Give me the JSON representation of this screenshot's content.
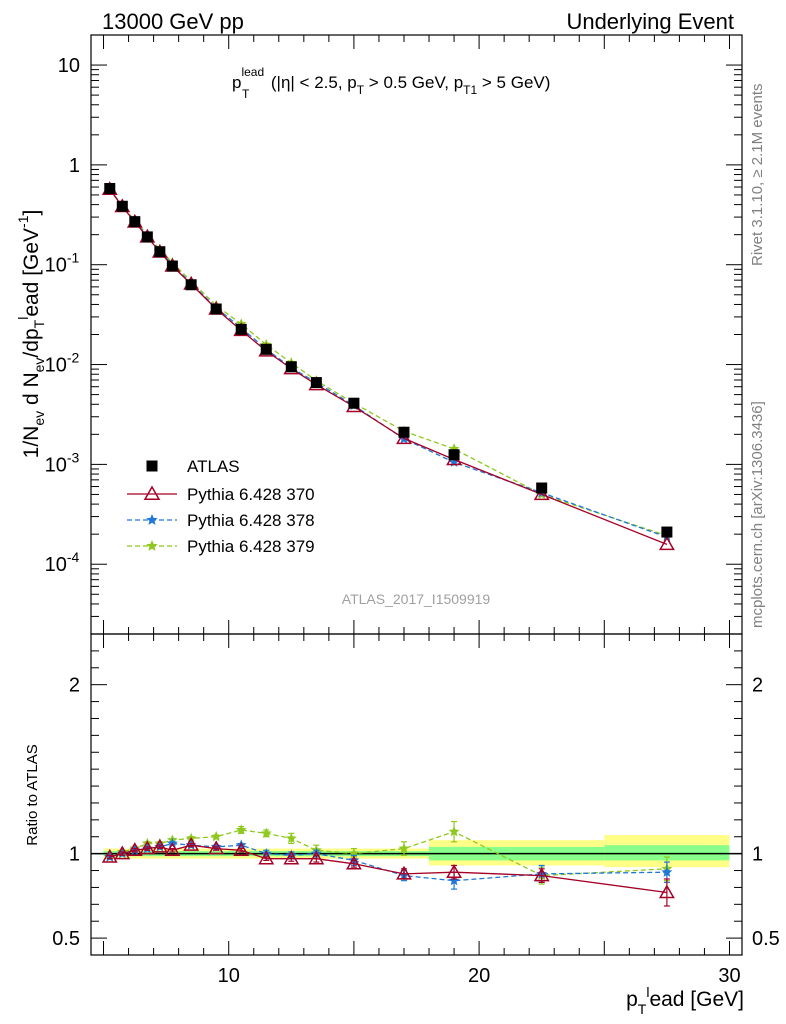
{
  "header": {
    "left": "13000 GeV pp",
    "right": "Underlying Event"
  },
  "side": {
    "rivet": "Rivet 3.1.10, ≥ 2.1M events",
    "mcplots": "mcplots.cern.ch [arXiv:1306.3436]"
  },
  "watermark": "ATLAS_2017_I1509919",
  "main_title": {
    "p": "p",
    "sup": "lead",
    "sub": "T",
    "rest1": " (|η| < 2.5, p",
    "sub2": "T",
    "rest2": " > 0.5 GeV, p",
    "sub3": "T1",
    "rest3": " > 5 GeV)"
  },
  "ylabel_main": "1/N_ev d N_ev/dp_T^lead [GeV^-1]",
  "ylabel_ratio": "Ratio to ATLAS",
  "xlabel": "p_T^lead [GeV]",
  "colors": {
    "atlas": "#000000",
    "p370": "#a50026",
    "p378": "#1f78d8",
    "p379": "#8fc81e",
    "band_yellow": "#ffff88",
    "band_green": "#88ff88"
  },
  "chart_data": [
    {
      "type": "scatter",
      "name": "main",
      "yscale": "log",
      "xlim": [
        4.5,
        30.5
      ],
      "ylim": [
        2e-05,
        20
      ],
      "xticks": [
        10,
        20,
        30
      ],
      "yticks": [
        {
          "v": 10,
          "label": "10"
        },
        {
          "v": 1,
          "label": "1"
        },
        {
          "v": 0.1,
          "label": "10^-1"
        },
        {
          "v": 0.01,
          "label": "10^-2"
        },
        {
          "v": 0.001,
          "label": "10^-3"
        },
        {
          "v": 0.0001,
          "label": "10^-4"
        }
      ],
      "legend_position": "lower-left",
      "x": [
        5.25,
        5.75,
        6.25,
        6.75,
        7.25,
        7.75,
        8.5,
        9.5,
        10.5,
        11.5,
        12.5,
        13.5,
        15,
        17,
        19,
        22.5,
        27.5
      ],
      "series": [
        {
          "name": "ATLAS",
          "key": "atlas",
          "marker": "square",
          "line": "none",
          "values": [
            0.58,
            0.385,
            0.27,
            0.19,
            0.135,
            0.097,
            0.063,
            0.036,
            0.0225,
            0.0142,
            0.0095,
            0.0066,
            0.0041,
            0.0021,
            0.00125,
            0.00058,
            0.00021
          ]
        },
        {
          "name": "Pythia 6.428 370",
          "key": "p370",
          "marker": "triangle-open",
          "line": "solid",
          "values": [
            0.57,
            0.383,
            0.268,
            0.19,
            0.134,
            0.097,
            0.064,
            0.036,
            0.022,
            0.0137,
            0.0091,
            0.0063,
            0.0038,
            0.00182,
            0.00112,
            0.0005,
            0.000158
          ]
        },
        {
          "name": "Pythia 6.428 378",
          "key": "p378",
          "marker": "star",
          "line": "dashed",
          "values": [
            0.57,
            0.385,
            0.271,
            0.194,
            0.137,
            0.1,
            0.065,
            0.037,
            0.0233,
            0.0142,
            0.0093,
            0.0066,
            0.0039,
            0.0018,
            0.00105,
            0.00052,
            0.000187
          ]
        },
        {
          "name": "Pythia 6.428 379",
          "key": "p379",
          "marker": "star",
          "line": "dashed",
          "values": [
            0.57,
            0.39,
            0.277,
            0.2,
            0.142,
            0.105,
            0.068,
            0.039,
            0.0255,
            0.0158,
            0.0104,
            0.0069,
            0.0041,
            0.00215,
            0.00143,
            0.0005,
            0.000193
          ]
        }
      ]
    },
    {
      "type": "scatter",
      "name": "ratio",
      "ylabel": "Ratio to ATLAS",
      "xlim": [
        4.5,
        30.5
      ],
      "ylim": [
        0.4,
        2.3
      ],
      "xticks": [
        10,
        20,
        30
      ],
      "yticks": [
        {
          "v": 0.5,
          "label": "0.5"
        },
        {
          "v": 1,
          "label": "1"
        },
        {
          "v": 2,
          "label": "2"
        }
      ],
      "bands": [
        {
          "x0": 5.0,
          "x1": 18.0,
          "yellow": [
            0.97,
            1.03
          ],
          "green": [
            0.985,
            1.015
          ]
        },
        {
          "x0": 18.0,
          "x1": 25.0,
          "yellow": [
            0.93,
            1.08
          ],
          "green": [
            0.96,
            1.04
          ]
        },
        {
          "x0": 25.0,
          "x1": 30.0,
          "yellow": [
            0.92,
            1.11
          ],
          "green": [
            0.96,
            1.05
          ]
        }
      ],
      "x": [
        5.25,
        5.75,
        6.25,
        6.75,
        7.25,
        7.75,
        8.5,
        9.5,
        10.5,
        11.5,
        12.5,
        13.5,
        15,
        17,
        19,
        22.5,
        27.5
      ],
      "series": [
        {
          "name": "Pythia 6.428 370",
          "key": "p370",
          "marker": "triangle-open",
          "line": "solid",
          "values": [
            0.98,
            1.0,
            1.02,
            1.03,
            1.04,
            1.02,
            1.05,
            1.03,
            1.02,
            0.97,
            0.97,
            0.97,
            0.94,
            0.88,
            0.89,
            0.87,
            0.77
          ],
          "errors": [
            0.01,
            0.01,
            0.01,
            0.01,
            0.01,
            0.01,
            0.01,
            0.01,
            0.01,
            0.01,
            0.015,
            0.02,
            0.02,
            0.03,
            0.04,
            0.04,
            0.08
          ]
        },
        {
          "name": "Pythia 6.428 378",
          "key": "p378",
          "marker": "star",
          "line": "dashed",
          "values": [
            0.98,
            1.0,
            1.02,
            1.03,
            1.04,
            1.06,
            1.05,
            1.04,
            1.05,
            1.0,
            0.99,
            1.0,
            0.96,
            0.87,
            0.84,
            0.88,
            0.89
          ],
          "errors": [
            0.01,
            0.01,
            0.01,
            0.01,
            0.01,
            0.01,
            0.01,
            0.01,
            0.01,
            0.02,
            0.02,
            0.02,
            0.03,
            0.03,
            0.05,
            0.05,
            0.06
          ]
        },
        {
          "name": "Pythia 6.428 379",
          "key": "p379",
          "marker": "star",
          "line": "dashed",
          "values": [
            0.98,
            1.01,
            1.03,
            1.06,
            1.06,
            1.08,
            1.09,
            1.1,
            1.14,
            1.12,
            1.09,
            1.02,
            1.0,
            1.03,
            1.13,
            0.87,
            0.91
          ],
          "errors": [
            0.01,
            0.01,
            0.01,
            0.01,
            0.01,
            0.01,
            0.01,
            0.01,
            0.02,
            0.02,
            0.03,
            0.03,
            0.03,
            0.04,
            0.06,
            0.05,
            0.07
          ]
        }
      ]
    }
  ]
}
